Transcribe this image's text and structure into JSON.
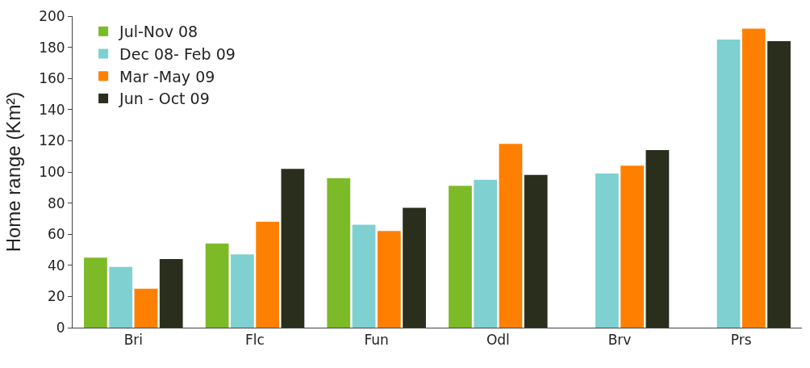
{
  "chart_data": {
    "type": "bar",
    "ylabel": "Home range (Km²)",
    "categories": [
      "Bri",
      "Flc",
      "Fun",
      "Odl",
      "Brv",
      "Prs"
    ],
    "series": [
      {
        "name": "Jul-Nov 08",
        "color": "#7dba28",
        "values": [
          45,
          54,
          96,
          91,
          null,
          null
        ]
      },
      {
        "name": "Dec 08- Feb 09",
        "color": "#7fd0d0",
        "values": [
          39,
          47,
          66,
          95,
          99,
          185
        ]
      },
      {
        "name": "Mar -May 09",
        "color": "#ff8000",
        "values": [
          25,
          68,
          62,
          118,
          104,
          192
        ]
      },
      {
        "name": "Jun - Oct 09",
        "color": "#2a2e1d",
        "values": [
          44,
          102,
          77,
          98,
          114,
          184
        ]
      }
    ],
    "ylim": [
      0,
      200
    ],
    "yticks": [
      0,
      20,
      40,
      60,
      80,
      100,
      120,
      140,
      160,
      180,
      200
    ],
    "legend": "top left"
  }
}
